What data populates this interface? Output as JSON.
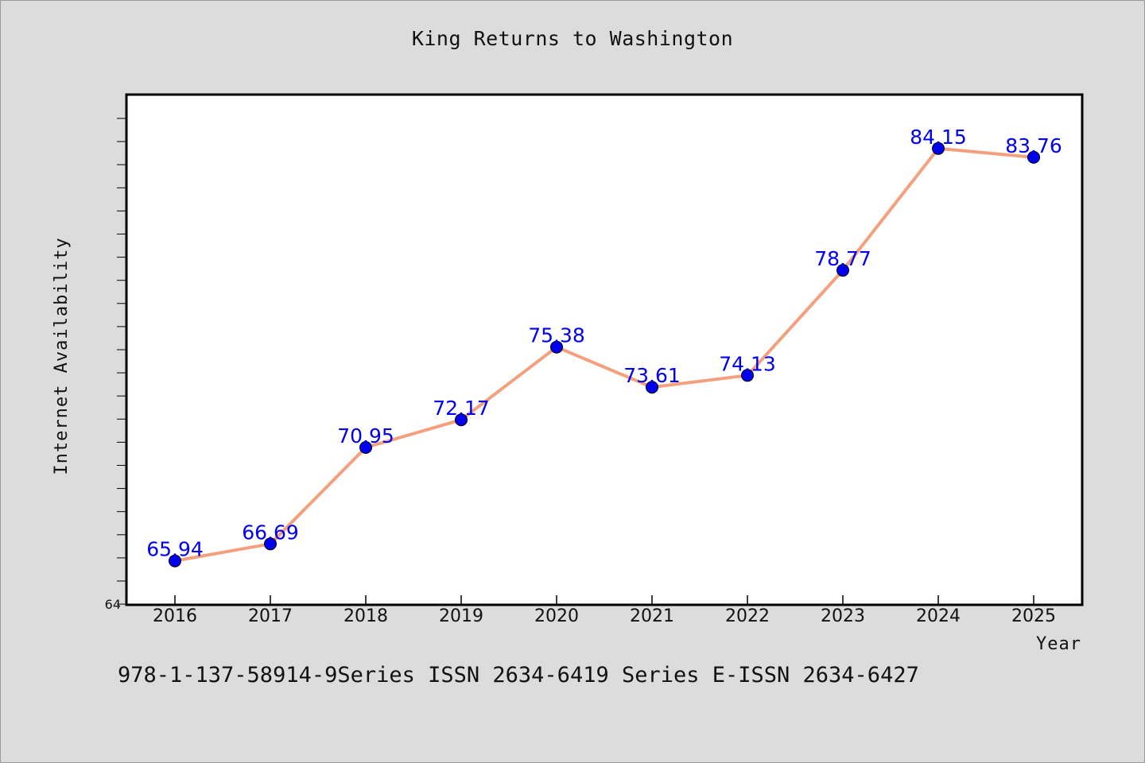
{
  "chart_data": {
    "type": "line",
    "title": "King Returns to Washington",
    "xlabel": "Year",
    "ylabel": "Internet Availability",
    "categories": [
      "2016",
      "2017",
      "2018",
      "2019",
      "2020",
      "2021",
      "2022",
      "2023",
      "2024",
      "2025"
    ],
    "series": [
      {
        "values": [
          65.94,
          66.69,
          70.95,
          72.17,
          75.38,
          73.61,
          74.13,
          78.77,
          84.15,
          83.76
        ],
        "line_color": "#f4a07e",
        "marker_color": "#0000ee",
        "label_color": "#0000ee"
      }
    ],
    "ylim": [
      64,
      86
    ],
    "y_tick_labels": [
      "64"
    ],
    "data_labels": [
      "65.94",
      "66.69",
      "70.95",
      "72.17",
      "75.38",
      "73.61",
      "74.13",
      "78.77",
      "84.15",
      "83.76"
    ],
    "grid": false,
    "legend": "none"
  },
  "footer": {
    "text": "978-1-137-58914-9Series ISSN 2634-6419 Series E-ISSN 2634-6427"
  }
}
